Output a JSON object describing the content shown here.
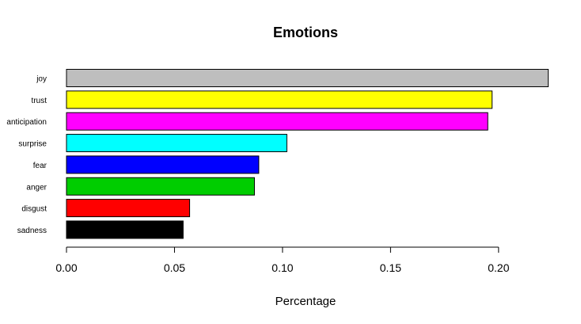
{
  "chart_data": {
    "type": "bar",
    "orientation": "horizontal",
    "title": "Emotions",
    "xlabel": "Percentage",
    "ylabel": "",
    "xlim": [
      0,
      0.2235
    ],
    "xticks": [
      0,
      0.05,
      0.1,
      0.15,
      0.2
    ],
    "xtick_labels": [
      "0.00",
      "0.05",
      "0.10",
      "0.15",
      "0.20"
    ],
    "grid": false,
    "legend": "none",
    "categories": [
      "joy",
      "trust",
      "anticipation",
      "surprise",
      "fear",
      "anger",
      "disgust",
      "sadness"
    ],
    "values": [
      0.223,
      0.197,
      0.195,
      0.102,
      0.089,
      0.087,
      0.057,
      0.054
    ],
    "colors": [
      "#bebebe",
      "#ffff00",
      "#ff00ff",
      "#00ffff",
      "#0000ff",
      "#00cd00",
      "#ff0000",
      "#000000"
    ]
  }
}
